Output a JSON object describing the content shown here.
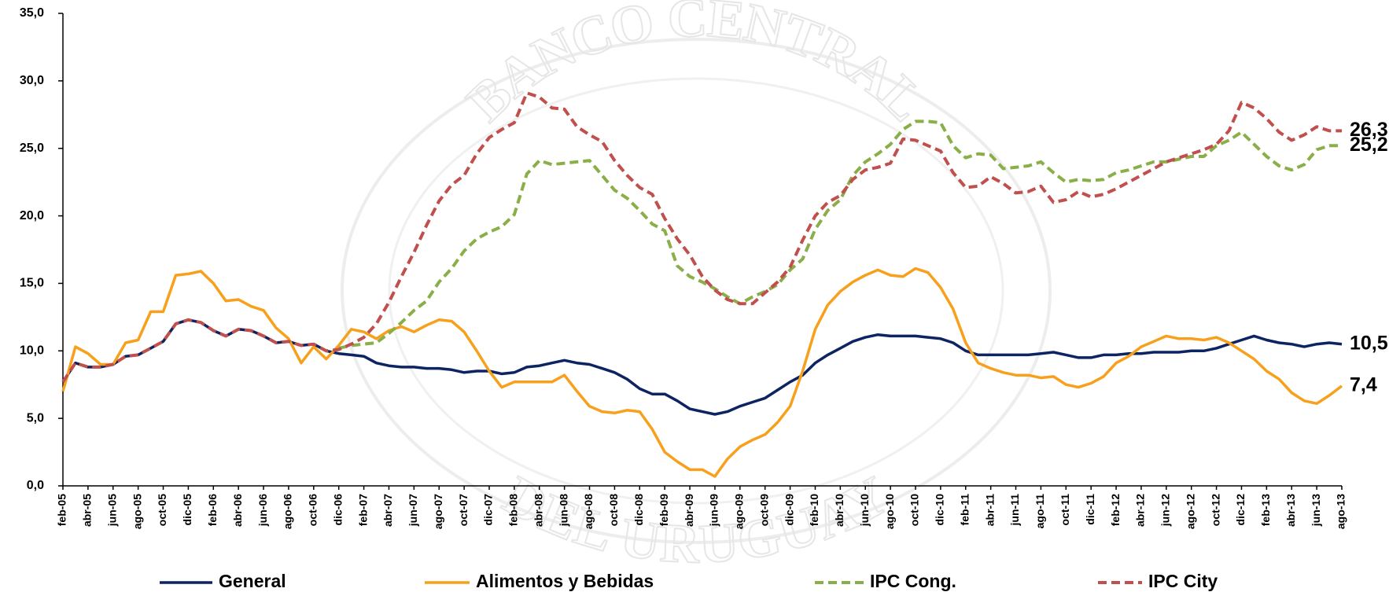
{
  "chart_data": {
    "type": "line",
    "watermark_top": "BANCO CENTRAL",
    "watermark_bottom": "DEL URUGUAY",
    "categories": [
      "feb-05",
      null,
      "abr-05",
      null,
      "jun-05",
      null,
      "ago-05",
      null,
      "oct-05",
      null,
      "dic-05",
      null,
      "feb-06",
      null,
      "abr-06",
      null,
      "jun-06",
      null,
      "ago-06",
      null,
      "oct-06",
      null,
      "dic-06",
      null,
      "feb-07",
      null,
      "abr-07",
      null,
      "jun-07",
      null,
      "ago-07",
      null,
      "oct-07",
      null,
      "dic-07",
      null,
      "feb-08",
      null,
      "abr-08",
      null,
      "jun-08",
      null,
      "ago-08",
      null,
      "oct-08",
      null,
      "dic-08",
      null,
      "feb-09",
      null,
      "abr-09",
      null,
      "jun-09",
      null,
      "ago-09",
      null,
      "oct-09",
      null,
      "dic-09",
      null,
      "feb-10",
      null,
      "abr-10",
      null,
      "jun-10",
      null,
      "ago-10",
      null,
      "oct-10",
      null,
      "dic-10",
      null,
      "feb-11",
      null,
      "abr-11",
      null,
      "jun-11",
      null,
      "ago-11",
      null,
      "oct-11",
      null,
      "dic-11",
      null,
      "feb-12",
      null,
      "abr-12",
      null,
      "jun-12",
      null,
      "ago-12",
      null,
      "oct-12",
      null,
      "dic-12",
      null,
      "feb-13",
      null,
      "abr-13",
      null,
      "jun-13",
      null,
      "ago-13"
    ],
    "ylim": [
      0,
      35
    ],
    "yticks": [
      {
        "value": 0,
        "label": "0,0"
      },
      {
        "value": 5,
        "label": "5,0"
      },
      {
        "value": 10,
        "label": "10,0"
      },
      {
        "value": 15,
        "label": "15,0"
      },
      {
        "value": 20,
        "label": "20,0"
      },
      {
        "value": 25,
        "label": "25,0"
      },
      {
        "value": 30,
        "label": "30,0"
      },
      {
        "value": 35,
        "label": "35,0"
      }
    ],
    "grid": false,
    "legend": "bottom",
    "series": [
      {
        "name": "General",
        "color": "#0d2463",
        "dashed": false,
        "values": [
          7.7,
          9.1,
          8.8,
          8.8,
          9.0,
          9.6,
          9.7,
          10.2,
          10.7,
          12.0,
          12.3,
          12.1,
          11.5,
          11.1,
          11.6,
          11.5,
          11.1,
          10.6,
          10.7,
          10.4,
          10.5,
          10.0,
          9.8,
          9.7,
          9.6,
          9.1,
          8.9,
          8.8,
          8.8,
          8.7,
          8.7,
          8.6,
          8.4,
          8.5,
          8.5,
          8.3,
          8.4,
          8.8,
          8.9,
          9.1,
          9.3,
          9.1,
          9.0,
          8.7,
          8.4,
          7.9,
          7.2,
          6.8,
          6.8,
          6.3,
          5.7,
          5.5,
          5.3,
          5.5,
          5.9,
          6.2,
          6.5,
          7.1,
          7.7,
          8.2,
          9.1,
          9.7,
          10.2,
          10.7,
          11.0,
          11.2,
          11.1,
          11.1,
          11.1,
          11.0,
          10.9,
          10.6,
          10.0,
          9.7,
          9.7,
          9.7,
          9.7,
          9.7,
          9.8,
          9.9,
          9.7,
          9.5,
          9.5,
          9.7,
          9.7,
          9.8,
          9.8,
          9.9,
          9.9,
          9.9,
          10.0,
          10.0,
          10.2,
          10.5,
          10.8,
          11.1,
          10.8,
          10.6,
          10.5,
          10.3,
          10.5,
          10.6,
          10.5
        ],
        "value_labels": [
          null,
          null,
          null,
          null,
          null,
          null,
          null,
          null,
          null,
          null,
          null,
          null,
          null,
          null,
          null,
          null,
          null,
          null,
          null,
          null,
          null,
          null,
          null,
          null,
          null,
          null,
          null,
          null,
          null,
          null,
          null,
          null,
          null,
          null,
          null,
          null,
          null,
          null,
          null,
          null,
          null,
          null,
          null,
          null,
          null,
          null,
          null,
          null,
          null,
          null,
          null,
          null,
          null,
          null,
          null,
          null,
          null,
          null,
          null,
          null,
          null,
          null,
          null,
          null,
          null,
          null,
          null,
          null,
          null,
          null,
          null,
          null,
          null,
          null,
          null,
          null,
          null,
          null,
          null,
          null,
          null,
          null,
          null,
          null,
          null,
          null,
          null,
          null,
          null,
          null,
          null,
          null,
          null,
          null,
          null,
          null,
          null,
          null,
          null,
          null,
          null,
          null,
          "10,5"
        ]
      },
      {
        "name": "Alimentos y Bebidas",
        "color": "#f7a01c",
        "dashed": false,
        "values": [
          7.0,
          10.3,
          9.8,
          9.0,
          9.0,
          10.6,
          10.8,
          12.9,
          12.9,
          15.6,
          15.7,
          15.9,
          15.0,
          13.7,
          13.8,
          13.3,
          13.0,
          11.7,
          10.9,
          9.1,
          10.3,
          9.4,
          10.4,
          11.6,
          11.4,
          10.9,
          11.5,
          11.8,
          11.4,
          11.9,
          12.3,
          12.2,
          11.4,
          10.0,
          8.5,
          7.3,
          7.7,
          7.7,
          7.7,
          7.7,
          8.2,
          7.0,
          5.9,
          5.5,
          5.4,
          5.6,
          5.5,
          4.2,
          2.5,
          1.8,
          1.2,
          1.2,
          0.7,
          2.0,
          2.9,
          3.4,
          3.8,
          4.7,
          5.9,
          8.5,
          11.6,
          13.4,
          14.4,
          15.1,
          15.6,
          16.0,
          15.6,
          15.5,
          16.1,
          15.8,
          14.7,
          13.1,
          10.6,
          9.1,
          8.7,
          8.4,
          8.2,
          8.2,
          8.0,
          8.1,
          7.5,
          7.3,
          7.6,
          8.1,
          9.1,
          9.6,
          10.3,
          10.7,
          11.1,
          10.9,
          10.9,
          10.8,
          11.0,
          10.6,
          10.0,
          9.4,
          8.5,
          7.9,
          6.9,
          6.3,
          6.1,
          6.7,
          7.4
        ],
        "value_labels": [
          null,
          null,
          null,
          null,
          null,
          null,
          null,
          null,
          null,
          null,
          null,
          null,
          null,
          null,
          null,
          null,
          null,
          null,
          null,
          null,
          null,
          null,
          null,
          null,
          null,
          null,
          null,
          null,
          null,
          null,
          null,
          null,
          null,
          null,
          null,
          null,
          null,
          null,
          null,
          null,
          null,
          null,
          null,
          null,
          null,
          null,
          null,
          null,
          null,
          null,
          null,
          null,
          null,
          null,
          null,
          null,
          null,
          null,
          null,
          null,
          null,
          null,
          null,
          null,
          null,
          null,
          null,
          null,
          null,
          null,
          null,
          null,
          null,
          null,
          null,
          null,
          null,
          null,
          null,
          null,
          null,
          null,
          null,
          null,
          null,
          null,
          null,
          null,
          null,
          null,
          null,
          null,
          null,
          null,
          null,
          null,
          null,
          null,
          null,
          null,
          null,
          null,
          "7,4"
        ]
      },
      {
        "name": "IPC Cong.",
        "color": "#8aae48",
        "dashed": true,
        "values": [
          null,
          null,
          null,
          null,
          null,
          null,
          null,
          null,
          null,
          null,
          null,
          null,
          null,
          null,
          null,
          null,
          null,
          null,
          null,
          null,
          null,
          null,
          10.2,
          10.4,
          10.5,
          10.6,
          11.3,
          12.1,
          13.0,
          13.7,
          15.1,
          16.1,
          17.4,
          18.3,
          18.8,
          19.2,
          20.1,
          23.1,
          24.1,
          23.8,
          23.9,
          24.0,
          24.1,
          23.0,
          21.9,
          21.3,
          20.4,
          19.4,
          18.9,
          16.3,
          15.5,
          15.1,
          14.6,
          14.0,
          13.5,
          14.0,
          14.4,
          14.9,
          16.0,
          16.8,
          19.0,
          20.4,
          21.2,
          23.0,
          24.0,
          24.6,
          25.3,
          26.4,
          27.0,
          27.0,
          26.9,
          25.2,
          24.3,
          24.6,
          24.5,
          23.5,
          23.6,
          23.7,
          24.0,
          23.2,
          22.5,
          22.7,
          22.6,
          22.7,
          23.2,
          23.4,
          23.7,
          24.0,
          24.0,
          24.2,
          24.4,
          24.4,
          25.2,
          25.6,
          26.2,
          25.3,
          24.4,
          23.7,
          23.4,
          23.8,
          24.9,
          25.2,
          25.2
        ],
        "value_labels": [
          null,
          null,
          null,
          null,
          null,
          null,
          null,
          null,
          null,
          null,
          null,
          null,
          null,
          null,
          null,
          null,
          null,
          null,
          null,
          null,
          null,
          null,
          null,
          null,
          null,
          null,
          null,
          null,
          null,
          null,
          null,
          null,
          null,
          null,
          null,
          null,
          null,
          null,
          null,
          null,
          null,
          null,
          null,
          null,
          null,
          null,
          null,
          null,
          null,
          null,
          null,
          null,
          null,
          null,
          null,
          null,
          null,
          null,
          null,
          null,
          null,
          null,
          null,
          null,
          null,
          null,
          null,
          null,
          null,
          null,
          null,
          null,
          null,
          null,
          null,
          null,
          null,
          null,
          null,
          null,
          null,
          null,
          null,
          null,
          null,
          null,
          null,
          null,
          null,
          null,
          null,
          null,
          null,
          null,
          null,
          null,
          null,
          null,
          null,
          null,
          null,
          null,
          "25,2"
        ]
      },
      {
        "name": "IPC City",
        "color": "#c0504d",
        "dashed": true,
        "values": [
          7.7,
          9.1,
          8.8,
          8.8,
          9.0,
          9.6,
          9.7,
          10.2,
          10.7,
          12.0,
          12.3,
          12.1,
          11.5,
          11.1,
          11.6,
          11.5,
          11.1,
          10.6,
          10.7,
          10.4,
          10.5,
          10.0,
          10.1,
          10.5,
          11.0,
          12.0,
          13.6,
          15.5,
          17.3,
          19.3,
          21.1,
          22.3,
          23.0,
          24.6,
          25.8,
          26.4,
          26.9,
          29.1,
          28.8,
          28.0,
          27.9,
          26.6,
          26.0,
          25.5,
          24.1,
          23.0,
          22.1,
          21.6,
          19.8,
          18.3,
          17.1,
          15.5,
          14.5,
          13.8,
          13.5,
          13.5,
          14.3,
          15.1,
          16.2,
          18.2,
          20.0,
          21.0,
          21.5,
          22.7,
          23.4,
          23.6,
          23.9,
          25.7,
          25.6,
          25.2,
          24.8,
          23.2,
          22.1,
          22.2,
          22.9,
          22.4,
          21.7,
          21.8,
          22.2,
          21.0,
          21.2,
          21.8,
          21.4,
          21.6,
          22.0,
          22.5,
          23.0,
          23.5,
          24.0,
          24.3,
          24.6,
          24.9,
          25.3,
          26.3,
          28.4,
          28.0,
          27.2,
          26.2,
          25.6,
          26.0,
          26.6,
          26.3,
          26.3
        ],
        "value_labels": [
          null,
          null,
          null,
          null,
          null,
          null,
          null,
          null,
          null,
          null,
          null,
          null,
          null,
          null,
          null,
          null,
          null,
          null,
          null,
          null,
          null,
          null,
          null,
          null,
          null,
          null,
          null,
          null,
          null,
          null,
          null,
          null,
          null,
          null,
          null,
          null,
          null,
          null,
          null,
          null,
          null,
          null,
          null,
          null,
          null,
          null,
          null,
          null,
          null,
          null,
          null,
          null,
          null,
          null,
          null,
          null,
          null,
          null,
          null,
          null,
          null,
          null,
          null,
          null,
          null,
          null,
          null,
          null,
          null,
          null,
          null,
          null,
          null,
          null,
          null,
          null,
          null,
          null,
          null,
          null,
          null,
          null,
          null,
          null,
          null,
          null,
          null,
          null,
          null,
          null,
          null,
          null,
          null,
          null,
          null,
          null,
          null,
          null,
          null,
          null,
          null,
          null,
          "26,3"
        ]
      }
    ]
  }
}
